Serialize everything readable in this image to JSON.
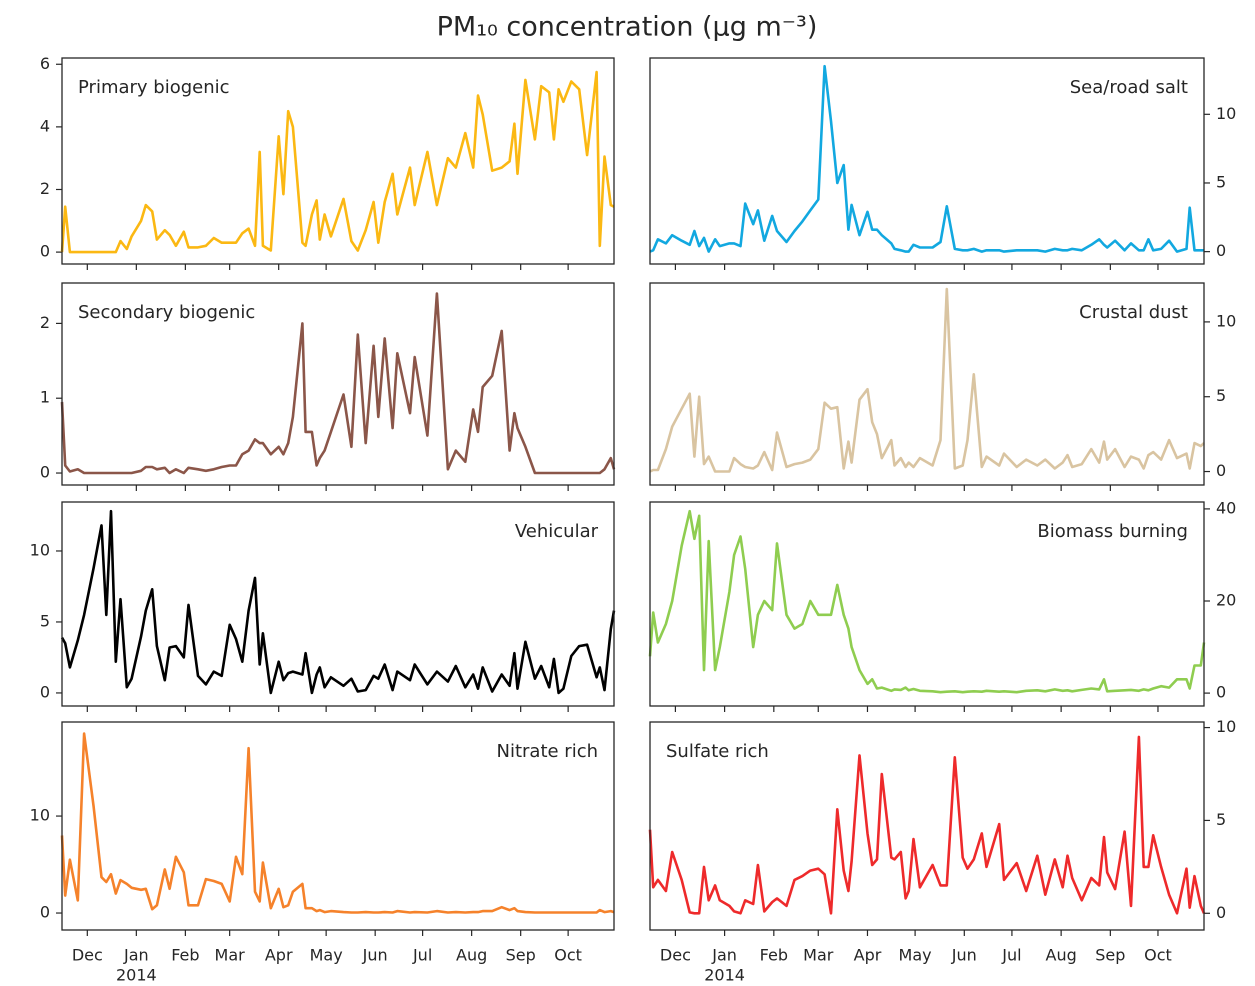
{
  "chart_data": {
    "title": "PM₁₀ concentration (µg m⁻³)",
    "x_year_label": "2014",
    "x": [
      -16,
      -14,
      -11,
      -6,
      -2,
      4,
      9,
      12,
      15,
      18,
      21,
      25,
      28,
      34,
      37,
      41,
      44,
      49,
      52,
      56,
      61,
      64,
      70,
      75,
      80,
      85,
      90,
      94,
      98,
      102,
      106,
      109,
      111,
      116,
      121,
      124,
      127,
      130,
      136,
      138,
      142,
      145,
      147,
      150,
      154,
      162,
      167,
      171,
      176,
      181,
      184,
      188,
      193,
      196,
      204,
      207,
      215,
      221,
      228,
      233,
      239,
      244,
      247,
      250,
      256,
      262,
      267,
      270,
      272,
      277,
      283,
      287,
      292,
      295,
      298,
      301,
      306,
      311,
      316,
      322,
      324,
      327,
      331,
      333
    ],
    "xlim": [
      -16,
      333
    ],
    "xticks": [
      {
        "value": 0,
        "label": "Dec"
      },
      {
        "value": 31,
        "label": "Jan"
      },
      {
        "value": 62,
        "label": "Feb"
      },
      {
        "value": 90,
        "label": "Mar"
      },
      {
        "value": 121,
        "label": "Apr"
      },
      {
        "value": 151,
        "label": "May"
      },
      {
        "value": 182,
        "label": "Jun"
      },
      {
        "value": 212,
        "label": "Jul"
      },
      {
        "value": 243,
        "label": "Aug"
      },
      {
        "value": 274,
        "label": "Sep"
      },
      {
        "value": 304,
        "label": "Oct"
      }
    ],
    "panels": [
      {
        "type": "line",
        "name": "Primary biogenic",
        "color": "#fbb813",
        "y_axis": "left",
        "label_corner": "upper left",
        "ylim": [
          -0.38,
          6.2
        ],
        "yticks": [
          0,
          2,
          4,
          6
        ],
        "values": [
          0,
          1.45,
          0,
          0,
          0,
          0,
          0,
          0,
          0,
          0,
          0.35,
          0.1,
          0.5,
          1.0,
          1.5,
          1.3,
          0.4,
          0.7,
          0.55,
          0.2,
          0.65,
          0.15,
          0.15,
          0.2,
          0.45,
          0.3,
          0.3,
          0.3,
          0.6,
          0.75,
          0.2,
          3.2,
          0.2,
          0.05,
          3.7,
          1.85,
          4.5,
          4.0,
          0.3,
          0.2,
          1.2,
          1.65,
          0.4,
          1.2,
          0.5,
          1.7,
          0.35,
          0.05,
          0.7,
          1.6,
          0.3,
          1.6,
          2.5,
          1.2,
          2.7,
          1.5,
          3.2,
          1.5,
          3.0,
          2.7,
          3.8,
          2.7,
          5.0,
          4.4,
          2.6,
          2.7,
          2.9,
          4.1,
          2.5,
          5.5,
          3.6,
          5.3,
          5.1,
          3.6,
          5.2,
          4.8,
          5.45,
          5.2,
          3.1,
          5.75,
          0.2,
          3.05,
          1.5,
          1.45
        ]
      },
      {
        "type": "line",
        "name": "Sea/road salt",
        "color": "#12a8e0",
        "y_axis": "right",
        "label_corner": "upper right",
        "ylim": [
          -0.9,
          14.1
        ],
        "yticks": [
          0,
          5,
          10
        ],
        "values": [
          0,
          0.1,
          0.9,
          0.6,
          1.2,
          0.8,
          0.5,
          1.5,
          0.4,
          1.0,
          0,
          0.9,
          0.4,
          0.6,
          0.6,
          0.4,
          3.5,
          2.0,
          3.0,
          0.8,
          2.6,
          1.5,
          0.7,
          1.5,
          2.2,
          3.0,
          3.8,
          13.5,
          9.5,
          5.0,
          6.3,
          1.6,
          3.4,
          1.2,
          2.9,
          1.6,
          1.6,
          1.2,
          0.6,
          0.2,
          0.1,
          0,
          0,
          0.5,
          0.3,
          0.3,
          0.7,
          3.3,
          0.2,
          0.1,
          0.1,
          0.2,
          0,
          0.1,
          0.1,
          0,
          0.1,
          0.1,
          0.1,
          0,
          0.2,
          0.1,
          0.1,
          0.2,
          0.1,
          0.5,
          0.9,
          0.5,
          0.3,
          0.8,
          0.1,
          0.6,
          0.1,
          0.1,
          0.9,
          0.1,
          0.2,
          0.8,
          0,
          0.2,
          3.2,
          0.1,
          0.1,
          0.1
        ]
      },
      {
        "type": "line",
        "name": "Secondary biogenic",
        "color": "#8b5649",
        "y_axis": "left",
        "label_corner": "upper left",
        "ylim": [
          -0.16,
          2.54
        ],
        "yticks": [
          0,
          1,
          2
        ],
        "values": [
          0.95,
          0.1,
          0.02,
          0.05,
          0,
          0,
          0,
          0,
          0,
          0,
          0,
          0,
          0,
          0.03,
          0.08,
          0.08,
          0.05,
          0.07,
          0,
          0.05,
          0,
          0.07,
          0.05,
          0.03,
          0.05,
          0.08,
          0.1,
          0.1,
          0.25,
          0.3,
          0.45,
          0.4,
          0.4,
          0.25,
          0.35,
          0.25,
          0.4,
          0.75,
          2.0,
          0.55,
          0.55,
          0.1,
          0.2,
          0.3,
          0.55,
          1.05,
          0.35,
          1.85,
          0.4,
          1.7,
          0.75,
          1.8,
          0.6,
          1.6,
          0.8,
          1.55,
          0.5,
          2.4,
          0.05,
          0.3,
          0.15,
          0.85,
          0.55,
          1.15,
          1.3,
          1.9,
          0.3,
          0.8,
          0.6,
          0.35,
          0,
          0,
          0,
          0,
          0,
          0,
          0,
          0,
          0,
          0,
          0,
          0.05,
          0.2,
          0.05
        ]
      },
      {
        "type": "line",
        "name": "Crustal dust",
        "color": "#d9c4a1",
        "y_axis": "right",
        "label_corner": "upper right",
        "ylim": [
          -0.9,
          12.6
        ],
        "yticks": [
          0,
          5,
          10
        ],
        "values": [
          0,
          0.1,
          0.1,
          1.5,
          3.0,
          4.2,
          5.2,
          1.0,
          5.0,
          0.5,
          1.0,
          0,
          0,
          0,
          0.9,
          0.5,
          0.3,
          0.2,
          0.4,
          1.3,
          0.1,
          2.6,
          0.3,
          0.5,
          0.6,
          0.8,
          1.5,
          4.6,
          4.2,
          4.3,
          0.2,
          2.0,
          0.6,
          4.8,
          5.5,
          3.3,
          2.5,
          0.9,
          2.1,
          0.4,
          0.9,
          0.3,
          0.6,
          0.3,
          0.9,
          0.4,
          2.1,
          12.2,
          0.2,
          0.4,
          2.1,
          6.5,
          0.3,
          1.0,
          0.4,
          1.2,
          0.3,
          0.8,
          0.4,
          0.8,
          0.2,
          0.6,
          1.1,
          0.3,
          0.5,
          1.5,
          0.6,
          2.0,
          0.8,
          1.5,
          0.3,
          1.0,
          0.8,
          0.2,
          1.1,
          1.3,
          0.8,
          2.1,
          0.9,
          1.2,
          0.2,
          1.9,
          1.7,
          1.9
        ]
      },
      {
        "type": "line",
        "name": "Vehicular",
        "color": "#000000",
        "y_axis": "left",
        "label_corner": "upper right",
        "ylim": [
          -0.92,
          13.45
        ],
        "yticks": [
          0,
          5,
          10
        ],
        "values": [
          3.9,
          3.5,
          1.8,
          3.7,
          5.5,
          8.8,
          11.8,
          5.5,
          12.8,
          2.2,
          6.6,
          0.4,
          1.0,
          4.0,
          5.8,
          7.3,
          3.3,
          0.9,
          3.2,
          3.3,
          2.5,
          6.2,
          1.2,
          0.6,
          1.5,
          1.2,
          4.8,
          3.8,
          2.2,
          5.8,
          8.1,
          2.0,
          4.2,
          0,
          2.2,
          0.9,
          1.4,
          1.5,
          1.3,
          2.8,
          0,
          1.3,
          1.8,
          0.4,
          1.1,
          0.5,
          1.0,
          0.1,
          0.2,
          1.2,
          1.0,
          2.0,
          0.2,
          1.5,
          0.9,
          2.0,
          0.6,
          1.5,
          0.8,
          1.9,
          0.4,
          1.3,
          0.3,
          1.8,
          0.1,
          1.3,
          0.5,
          2.8,
          0.3,
          3.6,
          1.0,
          1.9,
          0.4,
          2.4,
          0,
          0.3,
          2.6,
          3.3,
          3.4,
          1.1,
          1.8,
          0.2,
          4.5,
          5.8
        ]
      },
      {
        "type": "line",
        "name": "Biomass burning",
        "color": "#8fcd50",
        "y_axis": "right",
        "label_corner": "upper right",
        "ylim": [
          -2.8,
          41.5
        ],
        "yticks": [
          0,
          20,
          40
        ],
        "values": [
          8,
          17.5,
          11,
          15,
          20,
          32,
          39.5,
          33.5,
          38.5,
          5,
          33,
          5,
          10,
          22,
          30,
          34,
          27,
          10,
          17,
          20,
          18,
          32.5,
          17,
          14,
          15,
          20,
          17,
          17,
          17,
          23.5,
          17,
          14,
          10,
          5,
          2,
          3,
          1,
          1.2,
          0.5,
          0.8,
          0.7,
          1.2,
          0.6,
          0.9,
          0.5,
          0.4,
          0.2,
          0.3,
          0.4,
          0.2,
          0.3,
          0.4,
          0.3,
          0.5,
          0.3,
          0.4,
          0.2,
          0.5,
          0.6,
          0.4,
          0.8,
          0.5,
          0.6,
          0.4,
          0.7,
          1.0,
          0.8,
          3.0,
          0.4,
          0.5,
          0.6,
          0.7,
          0.5,
          0.8,
          0.6,
          1.0,
          1.5,
          1.2,
          3.0,
          3.0,
          1.0,
          6.0,
          6.0,
          11.0
        ]
      },
      {
        "type": "line",
        "name": "Nitrate rich",
        "color": "#f5822b",
        "y_axis": "left",
        "label_corner": "upper right",
        "ylim": [
          -1.75,
          19.7
        ],
        "yticks": [
          0,
          10
        ],
        "values": [
          8.0,
          1.8,
          5.5,
          1.3,
          18.5,
          11.0,
          3.7,
          3.2,
          4.0,
          2.0,
          3.4,
          3.0,
          2.6,
          2.4,
          2.5,
          0.4,
          0.8,
          4.5,
          2.5,
          5.8,
          4.2,
          0.8,
          0.8,
          3.5,
          3.3,
          3.0,
          1.2,
          5.8,
          4.0,
          17.0,
          2.2,
          1.2,
          5.2,
          0.5,
          2.5,
          0.6,
          0.8,
          2.2,
          3.0,
          0.5,
          0.5,
          0.2,
          0.3,
          0.1,
          0.2,
          0.1,
          0.05,
          0.05,
          0.1,
          0.05,
          0.05,
          0.1,
          0.05,
          0.2,
          0.05,
          0.1,
          0.05,
          0.2,
          0.05,
          0.1,
          0.05,
          0.1,
          0.1,
          0.2,
          0.2,
          0.6,
          0.3,
          0.5,
          0.2,
          0.1,
          0.05,
          0.05,
          0.05,
          0.05,
          0.05,
          0.05,
          0.05,
          0.05,
          0.05,
          0.05,
          0.3,
          0.1,
          0.2,
          0.1
        ]
      },
      {
        "type": "line",
        "name": "Sulfate rich",
        "color": "#ee2a2b",
        "y_axis": "right",
        "label_corner": "upper left",
        "ylim": [
          -0.9,
          10.3
        ],
        "yticks": [
          0,
          5,
          10
        ],
        "values": [
          4.5,
          1.4,
          1.8,
          1.2,
          3.3,
          1.8,
          0.05,
          0,
          0,
          2.5,
          0.7,
          1.5,
          0.7,
          0.4,
          0.1,
          0,
          0.7,
          0.5,
          2.6,
          0.1,
          0.6,
          0.8,
          0.4,
          1.8,
          2.0,
          2.3,
          2.4,
          2.1,
          0,
          5.6,
          2.3,
          1.2,
          2.8,
          8.5,
          4.3,
          2.6,
          2.9,
          7.5,
          3.0,
          2.9,
          3.3,
          0.8,
          1.2,
          4.0,
          1.4,
          2.6,
          1.5,
          1.5,
          8.4,
          3.0,
          2.4,
          2.9,
          4.3,
          2.5,
          4.8,
          1.8,
          2.7,
          1.2,
          3.1,
          1.0,
          2.9,
          1.4,
          3.1,
          1.9,
          0.7,
          1.9,
          1.5,
          4.1,
          2.2,
          1.3,
          4.4,
          0.4,
          9.5,
          2.5,
          2.5,
          4.2,
          2.5,
          1.0,
          0,
          2.4,
          0.3,
          2.0,
          0.4,
          0
        ]
      }
    ]
  }
}
